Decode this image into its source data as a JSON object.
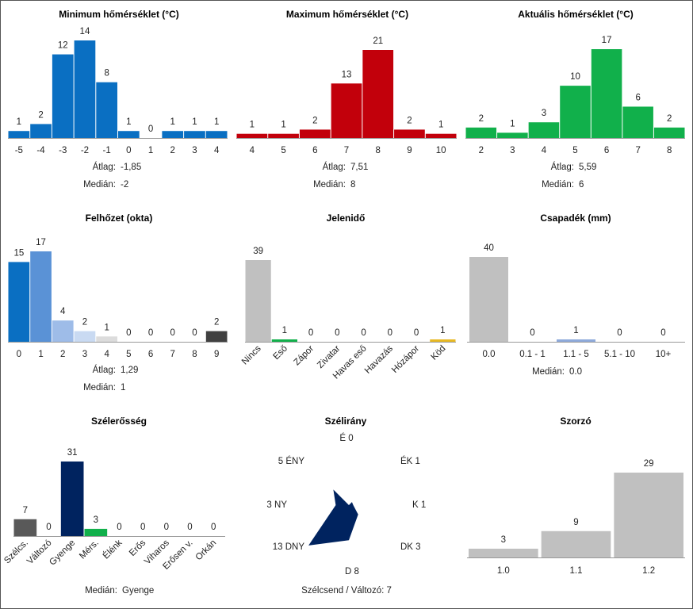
{
  "colors": {
    "min": "#0a6fc2",
    "max": "#c2000b",
    "act": "#11b04b",
    "gray": "#c0c0c0",
    "navy": "#00235f",
    "axis": "#999999",
    "dark": "#595959"
  },
  "stat_labels": {
    "avg": "Átlag:",
    "median": "Medián:"
  },
  "chart_data": [
    {
      "id": "min",
      "type": "bar",
      "title": "Minimum hőmérséklet (°C)",
      "categories": [
        "-5",
        "-4",
        "-3",
        "-2",
        "-1",
        "0",
        "1",
        "2",
        "3",
        "4"
      ],
      "values": [
        1,
        2,
        12,
        14,
        8,
        1,
        0,
        1,
        1,
        1
      ],
      "avg": "-1,85",
      "median": "-2"
    },
    {
      "id": "max",
      "type": "bar",
      "title": "Maximum hőmérséklet (°C)",
      "categories": [
        "4",
        "5",
        "6",
        "7",
        "8",
        "9",
        "10"
      ],
      "values": [
        1,
        1,
        2,
        13,
        21,
        2,
        1
      ],
      "avg": "7,51",
      "median": "8"
    },
    {
      "id": "act",
      "type": "bar",
      "title": "Aktuális hőmérséklet (°C)",
      "categories": [
        "2",
        "3",
        "4",
        "5",
        "6",
        "7",
        "8"
      ],
      "values": [
        2,
        1,
        3,
        10,
        17,
        6,
        2
      ],
      "avg": "5,59",
      "median": "6"
    },
    {
      "id": "cloud",
      "type": "bar",
      "title": "Felhőzet (okta)",
      "categories": [
        "0",
        "1",
        "2",
        "3",
        "4",
        "5",
        "6",
        "7",
        "8",
        "9"
      ],
      "values": [
        15,
        17,
        4,
        2,
        1,
        0,
        0,
        0,
        0,
        2
      ],
      "bar_colors": [
        "#0a6fc2",
        "#5a92d6",
        "#9ebce8",
        "#c9daf2",
        "#dcdcdc",
        "#dcdcdc",
        "#dcdcdc",
        "#dcdcdc",
        "#dcdcdc",
        "#404040"
      ],
      "avg": "1,29",
      "median": "1"
    },
    {
      "id": "phen",
      "type": "bar",
      "title": "Jelenidő",
      "categories": [
        "Nincs",
        "Eső",
        "Zápor",
        "Zivatar",
        "Havas eső",
        "Havazás",
        "Hózápor",
        "Köd"
      ],
      "values": [
        39,
        1,
        0,
        0,
        0,
        0,
        0,
        1
      ],
      "bar_colors": [
        "#c0c0c0",
        "#11b04b",
        "#c0c0c0",
        "#c0c0c0",
        "#c0c0c0",
        "#c0c0c0",
        "#c0c0c0",
        "#e8b923"
      ]
    },
    {
      "id": "precip",
      "type": "bar",
      "title": "Csapadék (mm)",
      "categories": [
        "0.0",
        "0.1 - 1",
        "1.1 - 5",
        "5.1 - 10",
        "10+"
      ],
      "values": [
        40,
        0,
        1,
        0,
        0
      ],
      "bar_colors": [
        "#c0c0c0",
        "#c0c0c0",
        "#8eaadb",
        "#c0c0c0",
        "#c0c0c0"
      ],
      "median": "0.0"
    },
    {
      "id": "wind",
      "type": "bar",
      "title": "Szélerősség",
      "categories": [
        "Szélcs.",
        "Változó",
        "Gyenge",
        "Mérs.",
        "Élénk",
        "Erős",
        "Viharos",
        "Erősen v.",
        "Orkán"
      ],
      "values": [
        7,
        0,
        31,
        3,
        0,
        0,
        0,
        0,
        0
      ],
      "bar_colors": [
        "#595959",
        "#c0c0c0",
        "#00235f",
        "#11b04b",
        "#c0c0c0",
        "#c0c0c0",
        "#c0c0c0",
        "#c0c0c0",
        "#c0c0c0"
      ],
      "median": "Gyenge"
    },
    {
      "id": "dir",
      "type": "radar",
      "title": "Szélirány",
      "categories": [
        "É",
        "ÉK",
        "K",
        "DK",
        "D",
        "DNY",
        "NY",
        "ÉNY"
      ],
      "values": [
        0,
        1,
        1,
        3,
        8,
        13,
        3,
        5
      ],
      "calm_text": "Szélcsend / Változó: 7"
    },
    {
      "id": "mult",
      "type": "bar",
      "title": "Szorzó",
      "categories": [
        "1.0",
        "1.1",
        "1.2"
      ],
      "values": [
        3,
        9,
        29
      ]
    }
  ]
}
